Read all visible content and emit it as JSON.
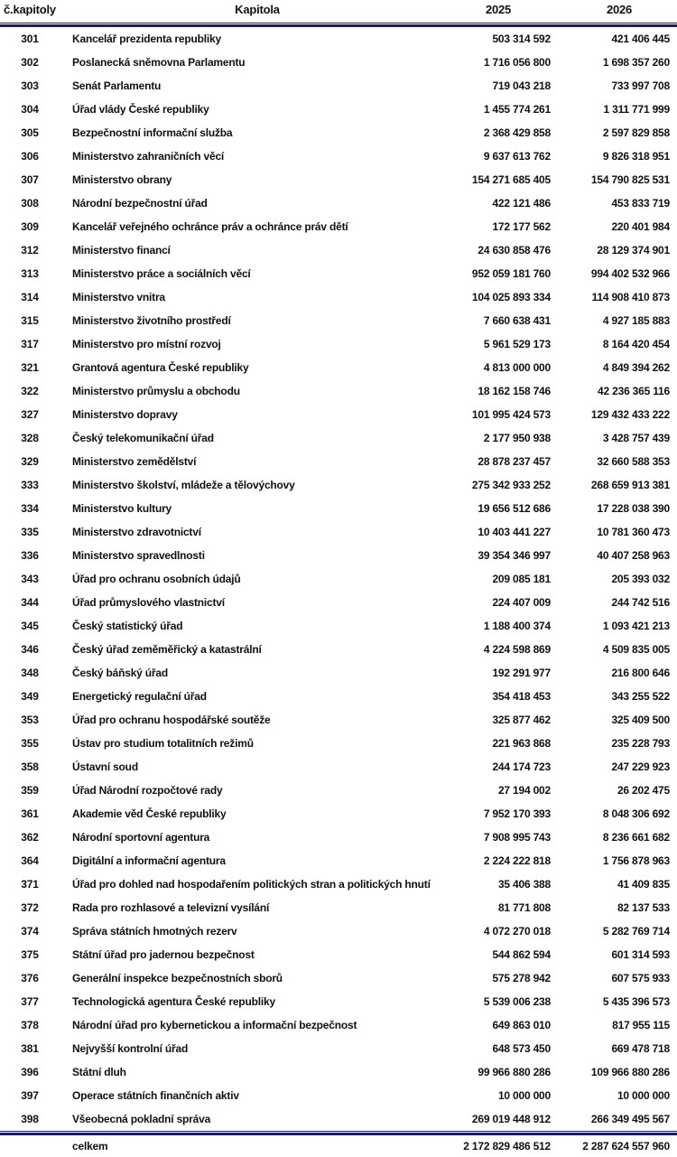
{
  "colors": {
    "rule_navy": "#1b1b66",
    "text": "#111111",
    "background": "#ffffff"
  },
  "table": {
    "header": {
      "chapter_no": "č.kapitoly",
      "chapter_name": "Kapitola",
      "year_2025": "2025",
      "year_2026": "2026"
    },
    "rows": [
      [
        "301",
        "Kancelář prezidenta republiky",
        "503 314 592",
        "421 406 445"
      ],
      [
        "302",
        "Poslanecká sněmovna Parlamentu",
        "1 716 056 800",
        "1 698 357 260"
      ],
      [
        "303",
        "Senát Parlamentu",
        "719 043 218",
        "733 997 708"
      ],
      [
        "304",
        "Úřad vlády České republiky",
        "1 455 774 261",
        "1 311 771 999"
      ],
      [
        "305",
        "Bezpečnostní informační služba",
        "2 368 429 858",
        "2 597 829 858"
      ],
      [
        "306",
        "Ministerstvo zahraničních věcí",
        "9 637 613 762",
        "9 826 318 951"
      ],
      [
        "307",
        "Ministerstvo obrany",
        "154 271 685 405",
        "154 790 825 531"
      ],
      [
        "308",
        "Národní bezpečnostní úřad",
        "422 121 486",
        "453 833 719"
      ],
      [
        "309",
        "Kancelář veřejného ochránce práv a ochránce práv dětí",
        "172 177 562",
        "220 401 984"
      ],
      [
        "312",
        "Ministerstvo financí",
        "24 630 858 476",
        "28 129 374 901"
      ],
      [
        "313",
        "Ministerstvo práce a sociálních věcí",
        "952 059 181 760",
        "994 402 532 966"
      ],
      [
        "314",
        "Ministerstvo vnitra",
        "104 025 893 334",
        "114 908 410 873"
      ],
      [
        "315",
        "Ministerstvo životního prostředí",
        "7 660 638 431",
        "4 927 185 883"
      ],
      [
        "317",
        "Ministerstvo pro místní rozvoj",
        "5 961 529 173",
        "8 164 420 454"
      ],
      [
        "321",
        "Grantová agentura České republiky",
        "4 813 000 000",
        "4 849 394 262"
      ],
      [
        "322",
        "Ministerstvo průmyslu a obchodu",
        "18 162 158 746",
        "42 236 365 116"
      ],
      [
        "327",
        "Ministerstvo dopravy",
        "101 995 424 573",
        "129 432 433 222"
      ],
      [
        "328",
        "Český telekomunikační úřad",
        "2 177 950 938",
        "3 428 757 439"
      ],
      [
        "329",
        "Ministerstvo zemědělství",
        "28 878 237 457",
        "32 660 588 353"
      ],
      [
        "333",
        "Ministerstvo školství, mládeže a tělovýchovy",
        "275 342 933 252",
        "268 659 913 381"
      ],
      [
        "334",
        "Ministerstvo kultury",
        "19 656 512 686",
        "17 228 038 390"
      ],
      [
        "335",
        "Ministerstvo zdravotnictví",
        "10 403 441 227",
        "10 781 360 473"
      ],
      [
        "336",
        "Ministerstvo spravedlnosti",
        "39 354 346 997",
        "40 407 258 963"
      ],
      [
        "343",
        "Úřad pro ochranu osobních údajů",
        "209 085 181",
        "205 393 032"
      ],
      [
        "344",
        "Úřad průmyslového vlastnictví",
        "224 407 009",
        "244 742 516"
      ],
      [
        "345",
        "Český statistický úřad",
        "1 188 400 374",
        "1 093 421 213"
      ],
      [
        "346",
        "Český úřad zeměměřický a katastrální",
        "4 224 598 869",
        "4 509 835 005"
      ],
      [
        "348",
        "Český báňský úřad",
        "192 291 977",
        "216 800 646"
      ],
      [
        "349",
        "Energetický regulační úřad",
        "354 418 453",
        "343 255 522"
      ],
      [
        "353",
        "Úřad pro ochranu hospodářské soutěže",
        "325 877 462",
        "325 409 500"
      ],
      [
        "355",
        "Ústav pro studium totalitních režimů",
        "221 963 868",
        "235 228 793"
      ],
      [
        "358",
        "Ústavní soud",
        "244 174 723",
        "247 229 923"
      ],
      [
        "359",
        "Úřad Národní rozpočtové rady",
        "27 194 002",
        "26 202 475"
      ],
      [
        "361",
        "Akademie věd České republiky",
        "7 952 170 393",
        "8 048 306 692"
      ],
      [
        "362",
        "Národní sportovní agentura",
        "7 908 995 743",
        "8 236 661 682"
      ],
      [
        "364",
        "Digitální a informační agentura",
        "2 224 222 818",
        "1 756 878 963"
      ],
      [
        "371",
        "Úřad pro dohled nad hospodařením politických stran a politických hnutí",
        "35 406 388",
        "41 409 835"
      ],
      [
        "372",
        "Rada pro rozhlasové a televizní vysílání",
        "81 771 808",
        "82 137 533"
      ],
      [
        "374",
        "Správa státních hmotných rezerv",
        "4 072 270 018",
        "5 282 769 714"
      ],
      [
        "375",
        "Státní úřad pro jadernou bezpečnost",
        "544 862 594",
        "601 314 593"
      ],
      [
        "376",
        "Generální inspekce bezpečnostních sborů",
        "575 278 942",
        "607 575 933"
      ],
      [
        "377",
        "Technologická agentura České republiky",
        "5 539 006 238",
        "5 435 396 573"
      ],
      [
        "378",
        "Národní úřad pro kybernetickou a informační bezpečnost",
        "649 863 010",
        "817 955 115"
      ],
      [
        "381",
        "Nejvyšší kontrolní úřad",
        "648 573 450",
        "669 478 718"
      ],
      [
        "396",
        "Státní dluh",
        "99 966 880 286",
        "109 966 880 286"
      ],
      [
        "397",
        "Operace státních finančních aktiv",
        "10 000 000",
        "10 000 000"
      ],
      [
        "398",
        "Všeobecná pokladní správa",
        "269 019 448 912",
        "266 349 495 567"
      ]
    ],
    "footer": {
      "label": "celkem",
      "total_2025": "2 172 829 486 512",
      "total_2026": "2 287 624 557 960"
    }
  }
}
